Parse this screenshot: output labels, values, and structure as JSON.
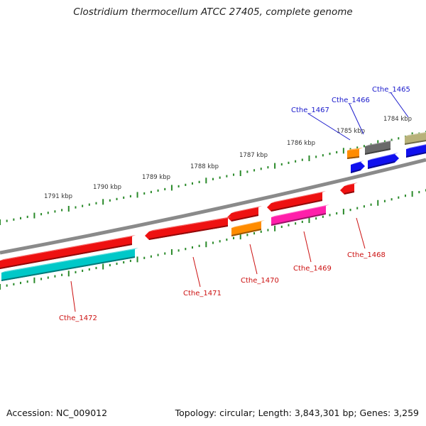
{
  "title": "Clostridium thermocellum ATCC 27405, complete genome",
  "footer": {
    "accession": "Accession: NC_009012",
    "summary": "Topology: circular; Length: 3,843,301 bp; Genes: 3,259"
  },
  "colors": {
    "backbone": "#8a8a8a",
    "tick": "#2a8a2a",
    "forward_label": "#1a1acc",
    "reverse_label": "#cc1111"
  },
  "kbp_labels": [
    "1784 kbp",
    "1785 kbp",
    "1786 kbp",
    "1787 kbp",
    "1788 kbp",
    "1789 kbp",
    "1790 kbp",
    "1791 kbp"
  ],
  "genes": [
    {
      "id": "Cthe_1465",
      "strand": "forward",
      "color": "#b8b27a"
    },
    {
      "id": "Cthe_1466",
      "strand": "forward",
      "color": "#6a6a6a"
    },
    {
      "id": "Cthe_1467",
      "strand": "forward",
      "color": "#ff8c00"
    },
    {
      "id": "Cthe_1468",
      "strand": "reverse",
      "color": "#ee1111"
    },
    {
      "id": "Cthe_1469",
      "strand": "reverse",
      "color": "#ee1111"
    },
    {
      "id": "Cthe_1470",
      "strand": "reverse",
      "color": "#ee1111"
    },
    {
      "id": "Cthe_1471",
      "strand": "reverse",
      "color": "#ee1111"
    },
    {
      "id": "Cthe_1472",
      "strand": "reverse",
      "color": "#ee1111"
    }
  ],
  "other_features": [
    {
      "color": "#1010ee"
    },
    {
      "color": "#1010ee"
    },
    {
      "color": "#1010ee"
    },
    {
      "color": "#ff1faa"
    },
    {
      "color": "#ff8c00"
    },
    {
      "color": "#00c8c8"
    }
  ]
}
